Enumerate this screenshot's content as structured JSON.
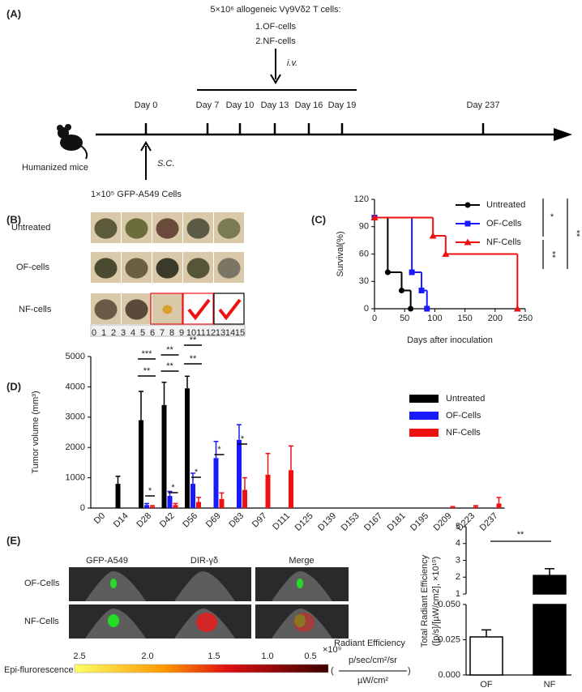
{
  "panel_labels": [
    "(A)",
    "(B)",
    "(C)",
    "(D)",
    "(E)"
  ],
  "timeline": {
    "dose": "5×10⁶ allogeneic Vγ9Vδ2 T cells:",
    "groups": [
      "1.OF-cells",
      "2.NF-cells"
    ],
    "route_iv": "i.v.",
    "days": [
      "Day 0",
      "Day 7",
      "Day 10",
      "Day 13",
      "Day 16",
      "Day 19",
      "Day 237"
    ],
    "subject": "Humanized mice",
    "route_sc": "S.C.",
    "inoculum": "1×10⁵ GFP-A549 Cells"
  },
  "photos": {
    "rows": [
      "Untreated",
      "OF-cells",
      "NF-cells"
    ],
    "ruler": [
      "0",
      "1",
      "2",
      "3",
      "4",
      "5",
      "6",
      "7",
      "8",
      "9",
      "10",
      "11",
      "12",
      "13",
      "14",
      "15"
    ]
  },
  "imaging": {
    "columns": [
      "GFP-A549",
      "DIR-γδ",
      "Merge"
    ],
    "rows": [
      "OF-Cells",
      "NF-Cells"
    ],
    "scale_label": "Epi-flurorescence",
    "scale_ticks": [
      "2.5",
      "2.0",
      "1.5",
      "1.0",
      "0.5"
    ],
    "scale_exponent": "×10⁹",
    "unit_title": "Radiant Efficiency",
    "unit_numerator": "p/sec/cm²/sr",
    "unit_denominator": "µW/cm²"
  },
  "chart_data": [
    {
      "type": "line",
      "step": true,
      "xlabel": "Days after inoculation",
      "ylabel": "Survival(%)",
      "xlim": [
        0,
        250
      ],
      "xticks": [
        0,
        50,
        100,
        150,
        200,
        250
      ],
      "ylim": [
        0,
        120
      ],
      "yticks": [
        0,
        30,
        60,
        90,
        120
      ],
      "series": [
        {
          "name": "Untreated",
          "color": "#000000",
          "marker": "circle",
          "x": [
            0,
            22,
            45,
            60
          ],
          "values": [
            100,
            40,
            20,
            0
          ]
        },
        {
          "name": "OF-Cells",
          "color": "#1a1aff",
          "marker": "square",
          "x": [
            0,
            62,
            78,
            87
          ],
          "values": [
            100,
            40,
            20,
            0
          ]
        },
        {
          "name": "NF-Cells",
          "color": "#ee1111",
          "marker": "triangle",
          "x": [
            0,
            97,
            118,
            237
          ],
          "values": [
            100,
            80,
            60,
            0
          ]
        }
      ],
      "annotations": [
        "*",
        "**",
        "**"
      ]
    },
    {
      "type": "bar",
      "ylabel": "Tumor volume (mm³)",
      "categories": [
        "D0",
        "D14",
        "D28",
        "D42",
        "D56",
        "D69",
        "D83",
        "D97",
        "D111",
        "D125",
        "D139",
        "D153",
        "D167",
        "D181",
        "D195",
        "D209",
        "D223",
        "D237"
      ],
      "ylim": [
        0,
        5000
      ],
      "yticks": [
        0,
        1000,
        2000,
        3000,
        4000,
        5000
      ],
      "series": [
        {
          "name": "Untreated",
          "color": "#000000",
          "values": [
            0,
            800,
            2900,
            3400,
            3950,
            null,
            null,
            null,
            null,
            null,
            null,
            null,
            null,
            null,
            null,
            null,
            null,
            null
          ],
          "errors": [
            null,
            250,
            950,
            750,
            400,
            null,
            null,
            null,
            null,
            null,
            null,
            null,
            null,
            null,
            null,
            null,
            null,
            null
          ]
        },
        {
          "name": "OF-Cells",
          "color": "#1a1aff",
          "values": [
            0,
            0,
            100,
            400,
            800,
            1650,
            2250,
            null,
            null,
            null,
            null,
            null,
            null,
            null,
            null,
            null,
            null,
            null
          ],
          "errors": [
            null,
            null,
            50,
            150,
            350,
            550,
            500,
            null,
            null,
            null,
            null,
            null,
            null,
            null,
            null,
            null,
            null,
            null
          ]
        },
        {
          "name": "NF-Cells",
          "color": "#ee1111",
          "values": [
            0,
            0,
            50,
            100,
            200,
            300,
            600,
            1100,
            1250,
            0,
            0,
            0,
            0,
            0,
            0,
            30,
            50,
            150
          ],
          "errors": [
            null,
            null,
            30,
            50,
            150,
            200,
            400,
            700,
            800,
            null,
            null,
            null,
            null,
            null,
            null,
            20,
            30,
            200
          ]
        }
      ],
      "annotations": [
        "***",
        "**",
        "*",
        "**",
        "**",
        "*",
        "**",
        "**",
        "*",
        "*",
        "*"
      ]
    },
    {
      "type": "bar",
      "broken_axis": true,
      "ylabel": [
        "Total Radiant Efficiency",
        "([p/s]/[µW/cm2], ×10¹⁰)"
      ],
      "categories": [
        "OF",
        "NF"
      ],
      "values": [
        0.027,
        2.1
      ],
      "errors": [
        0.005,
        0.4
      ],
      "colors": [
        "#ffffff",
        "#000000"
      ],
      "segments": [
        {
          "ylim": [
            0,
            0.05
          ],
          "yticks": [
            {
              "value": 0,
              "label": "0.000"
            },
            {
              "value": 0.025,
              "label": "0.025"
            },
            {
              "value": 0.05,
              "label": "0.050"
            }
          ]
        },
        {
          "ylim": [
            1,
            5
          ],
          "yticks": [
            1,
            2,
            3,
            4,
            5
          ]
        }
      ],
      "annotations": [
        "**"
      ]
    }
  ]
}
